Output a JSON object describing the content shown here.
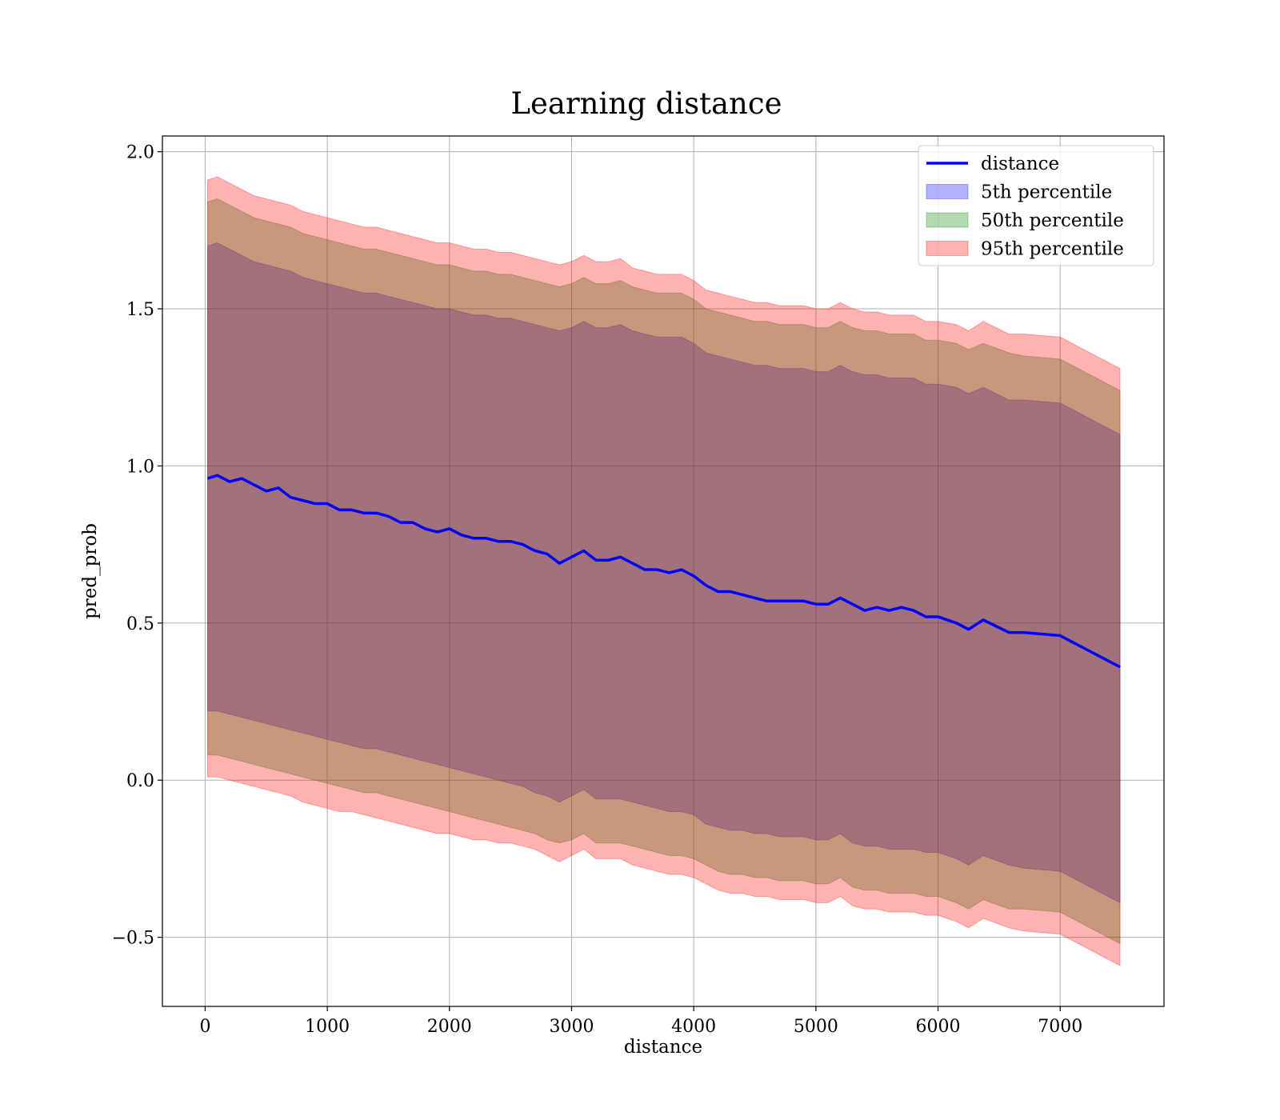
{
  "chart_data": {
    "type": "line",
    "title": "Learning distance",
    "xlabel": "distance",
    "ylabel": "pred_prob",
    "xlim": [
      -350,
      7850
    ],
    "ylim": [
      -0.72,
      2.05
    ],
    "xticks": [
      0,
      1000,
      2000,
      3000,
      4000,
      5000,
      6000,
      7000
    ],
    "xtick_labels": [
      "0",
      "1000",
      "2000",
      "3000",
      "4000",
      "5000",
      "6000",
      "7000"
    ],
    "yticks": [
      -0.5,
      0.0,
      0.5,
      1.0,
      1.5,
      2.0
    ],
    "ytick_labels": [
      "−0.5",
      "0.0",
      "0.5",
      "1.0",
      "1.5",
      "2.0"
    ],
    "grid": true,
    "legend_position": "top-right",
    "x": [
      20,
      100,
      200,
      300,
      400,
      500,
      600,
      700,
      800,
      900,
      1000,
      1100,
      1200,
      1300,
      1400,
      1500,
      1600,
      1700,
      1800,
      1900,
      2000,
      2100,
      2200,
      2300,
      2400,
      2500,
      2600,
      2700,
      2800,
      2900,
      3000,
      3100,
      3200,
      3300,
      3400,
      3500,
      3600,
      3700,
      3800,
      3900,
      4000,
      4100,
      4200,
      4300,
      4400,
      4500,
      4600,
      4700,
      4800,
      4900,
      5000,
      5100,
      5200,
      5300,
      5400,
      5500,
      5600,
      5700,
      5800,
      5900,
      6000,
      6150,
      6250,
      6370,
      6580,
      6700,
      7000,
      7490
    ],
    "series": [
      {
        "name": "distance",
        "kind": "line",
        "color": "#0000ff",
        "values": [
          0.96,
          0.97,
          0.95,
          0.96,
          0.94,
          0.92,
          0.93,
          0.9,
          0.89,
          0.88,
          0.88,
          0.86,
          0.86,
          0.85,
          0.85,
          0.84,
          0.82,
          0.82,
          0.8,
          0.79,
          0.8,
          0.78,
          0.77,
          0.77,
          0.76,
          0.76,
          0.75,
          0.73,
          0.72,
          0.69,
          0.71,
          0.73,
          0.7,
          0.7,
          0.71,
          0.69,
          0.67,
          0.67,
          0.66,
          0.67,
          0.65,
          0.62,
          0.6,
          0.6,
          0.59,
          0.58,
          0.57,
          0.57,
          0.57,
          0.57,
          0.56,
          0.56,
          0.58,
          0.56,
          0.54,
          0.55,
          0.54,
          0.55,
          0.54,
          0.52,
          0.52,
          0.5,
          0.48,
          0.51,
          0.47,
          0.47,
          0.46,
          0.36
        ]
      },
      {
        "name": "5th percentile",
        "kind": "band",
        "color": "#0000ff",
        "lower": [
          0.22,
          0.22,
          0.21,
          0.2,
          0.19,
          0.18,
          0.17,
          0.16,
          0.15,
          0.14,
          0.13,
          0.12,
          0.11,
          0.1,
          0.1,
          0.09,
          0.08,
          0.07,
          0.06,
          0.05,
          0.04,
          0.03,
          0.02,
          0.01,
          0.0,
          -0.01,
          -0.02,
          -0.04,
          -0.05,
          -0.07,
          -0.05,
          -0.03,
          -0.06,
          -0.06,
          -0.06,
          -0.07,
          -0.08,
          -0.09,
          -0.1,
          -0.1,
          -0.11,
          -0.14,
          -0.15,
          -0.16,
          -0.16,
          -0.17,
          -0.17,
          -0.18,
          -0.18,
          -0.18,
          -0.19,
          -0.19,
          -0.17,
          -0.2,
          -0.21,
          -0.21,
          -0.22,
          -0.22,
          -0.22,
          -0.23,
          -0.23,
          -0.25,
          -0.27,
          -0.24,
          -0.27,
          -0.28,
          -0.29,
          -0.39
        ],
        "upper": [
          1.7,
          1.71,
          1.69,
          1.67,
          1.65,
          1.64,
          1.63,
          1.62,
          1.6,
          1.59,
          1.58,
          1.57,
          1.56,
          1.55,
          1.55,
          1.54,
          1.53,
          1.52,
          1.51,
          1.5,
          1.5,
          1.49,
          1.48,
          1.48,
          1.47,
          1.47,
          1.46,
          1.45,
          1.44,
          1.43,
          1.44,
          1.46,
          1.44,
          1.44,
          1.45,
          1.43,
          1.42,
          1.41,
          1.41,
          1.41,
          1.39,
          1.36,
          1.35,
          1.34,
          1.33,
          1.32,
          1.32,
          1.31,
          1.31,
          1.31,
          1.3,
          1.3,
          1.32,
          1.3,
          1.29,
          1.29,
          1.28,
          1.28,
          1.28,
          1.26,
          1.26,
          1.25,
          1.23,
          1.25,
          1.21,
          1.21,
          1.2,
          1.1
        ]
      },
      {
        "name": "50th percentile",
        "kind": "band",
        "color": "#008000",
        "lower": [
          0.08,
          0.08,
          0.07,
          0.06,
          0.05,
          0.04,
          0.03,
          0.02,
          0.01,
          0.0,
          -0.01,
          -0.02,
          -0.03,
          -0.04,
          -0.04,
          -0.05,
          -0.06,
          -0.07,
          -0.08,
          -0.09,
          -0.1,
          -0.11,
          -0.12,
          -0.13,
          -0.14,
          -0.15,
          -0.16,
          -0.17,
          -0.19,
          -0.2,
          -0.19,
          -0.17,
          -0.2,
          -0.2,
          -0.2,
          -0.21,
          -0.22,
          -0.23,
          -0.24,
          -0.24,
          -0.25,
          -0.27,
          -0.29,
          -0.3,
          -0.3,
          -0.31,
          -0.31,
          -0.32,
          -0.32,
          -0.32,
          -0.33,
          -0.33,
          -0.31,
          -0.34,
          -0.35,
          -0.35,
          -0.36,
          -0.36,
          -0.36,
          -0.37,
          -0.37,
          -0.39,
          -0.41,
          -0.38,
          -0.41,
          -0.41,
          -0.42,
          -0.52
        ],
        "upper": [
          1.84,
          1.85,
          1.83,
          1.81,
          1.79,
          1.78,
          1.77,
          1.76,
          1.74,
          1.73,
          1.72,
          1.71,
          1.7,
          1.69,
          1.69,
          1.68,
          1.67,
          1.66,
          1.65,
          1.64,
          1.64,
          1.63,
          1.62,
          1.62,
          1.61,
          1.61,
          1.6,
          1.59,
          1.58,
          1.57,
          1.58,
          1.6,
          1.58,
          1.58,
          1.59,
          1.57,
          1.56,
          1.55,
          1.55,
          1.55,
          1.53,
          1.5,
          1.49,
          1.48,
          1.47,
          1.46,
          1.46,
          1.45,
          1.45,
          1.45,
          1.44,
          1.44,
          1.46,
          1.44,
          1.43,
          1.43,
          1.42,
          1.42,
          1.42,
          1.4,
          1.4,
          1.39,
          1.37,
          1.39,
          1.36,
          1.35,
          1.34,
          1.24
        ]
      },
      {
        "name": "95th percentile",
        "kind": "band",
        "color": "#ff0000",
        "lower": [
          0.01,
          0.01,
          0.0,
          -0.01,
          -0.02,
          -0.03,
          -0.04,
          -0.05,
          -0.07,
          -0.08,
          -0.09,
          -0.1,
          -0.1,
          -0.11,
          -0.12,
          -0.13,
          -0.14,
          -0.15,
          -0.16,
          -0.17,
          -0.17,
          -0.18,
          -0.19,
          -0.19,
          -0.2,
          -0.2,
          -0.21,
          -0.22,
          -0.24,
          -0.26,
          -0.24,
          -0.22,
          -0.25,
          -0.25,
          -0.25,
          -0.27,
          -0.28,
          -0.29,
          -0.3,
          -0.3,
          -0.31,
          -0.33,
          -0.35,
          -0.36,
          -0.36,
          -0.37,
          -0.37,
          -0.38,
          -0.38,
          -0.38,
          -0.39,
          -0.39,
          -0.37,
          -0.4,
          -0.41,
          -0.41,
          -0.42,
          -0.42,
          -0.42,
          -0.43,
          -0.43,
          -0.45,
          -0.47,
          -0.44,
          -0.47,
          -0.48,
          -0.49,
          -0.59
        ],
        "upper": [
          1.91,
          1.92,
          1.9,
          1.88,
          1.86,
          1.85,
          1.84,
          1.83,
          1.81,
          1.8,
          1.79,
          1.78,
          1.77,
          1.76,
          1.76,
          1.75,
          1.74,
          1.73,
          1.72,
          1.71,
          1.71,
          1.7,
          1.69,
          1.69,
          1.68,
          1.68,
          1.67,
          1.66,
          1.65,
          1.64,
          1.65,
          1.67,
          1.65,
          1.65,
          1.66,
          1.63,
          1.62,
          1.61,
          1.61,
          1.61,
          1.59,
          1.56,
          1.55,
          1.54,
          1.53,
          1.52,
          1.52,
          1.51,
          1.51,
          1.51,
          1.5,
          1.5,
          1.52,
          1.5,
          1.49,
          1.49,
          1.48,
          1.48,
          1.48,
          1.46,
          1.46,
          1.45,
          1.43,
          1.46,
          1.42,
          1.42,
          1.41,
          1.31
        ]
      }
    ]
  }
}
